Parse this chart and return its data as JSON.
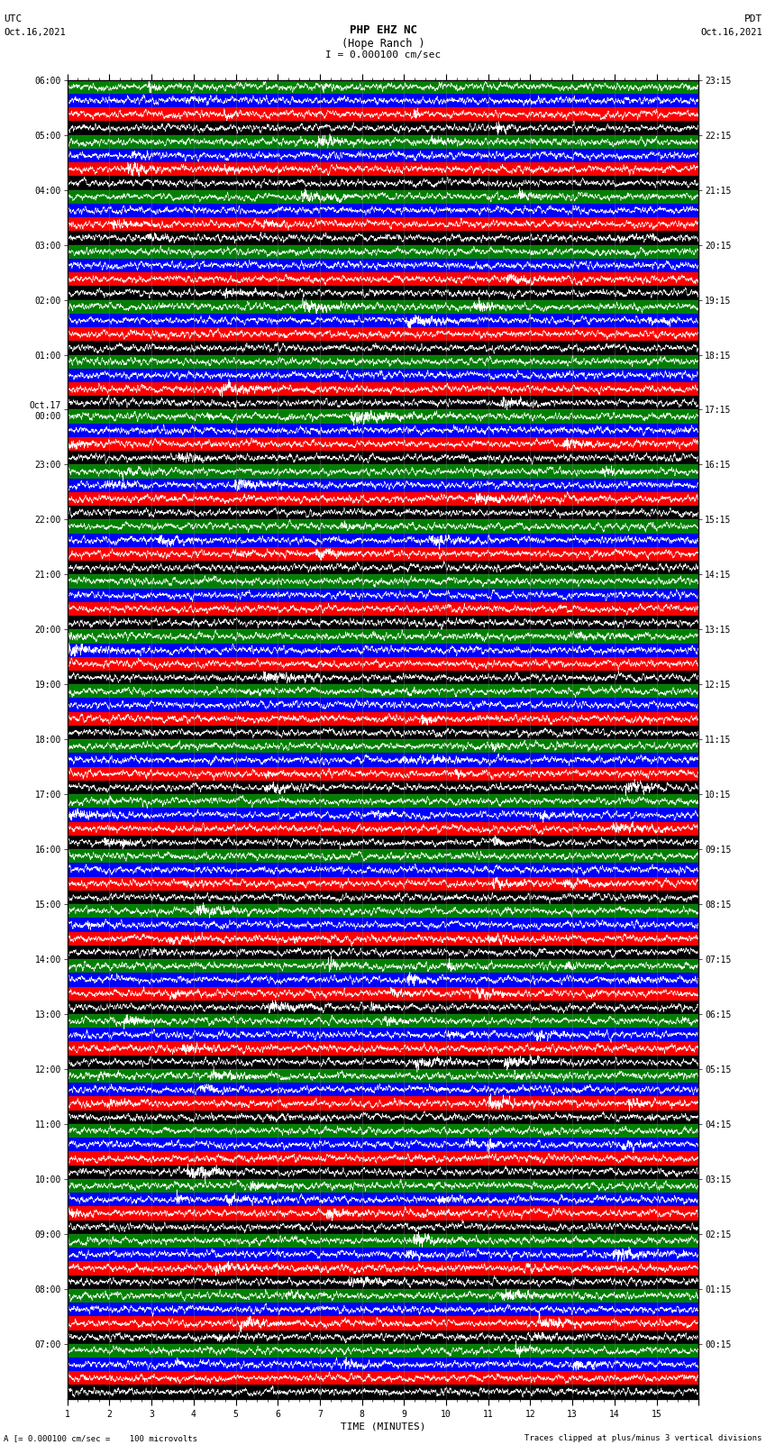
{
  "title_line1": "PHP EHZ NC",
  "title_line2": "(Hope Ranch )",
  "scale_label": "I = 0.000100 cm/sec",
  "utc_label": "UTC",
  "utc_date": "Oct.16,2021",
  "pdt_label": "PDT",
  "pdt_date": "Oct.16,2021",
  "xlabel": "TIME (MINUTES)",
  "bottom_left": "A [= 0.000100 cm/sec =    100 microvolts",
  "bottom_right": "Traces clipped at plus/minus 3 vertical divisions",
  "left_times": [
    "07:00",
    "08:00",
    "09:00",
    "10:00",
    "11:00",
    "12:00",
    "13:00",
    "14:00",
    "15:00",
    "16:00",
    "17:00",
    "18:00",
    "19:00",
    "20:00",
    "21:00",
    "22:00",
    "23:00",
    "Oct.17\n00:00",
    "01:00",
    "02:00",
    "03:00",
    "04:00",
    "05:00",
    "06:00"
  ],
  "right_times": [
    "00:15",
    "01:15",
    "02:15",
    "03:15",
    "04:15",
    "05:15",
    "06:15",
    "07:15",
    "08:15",
    "09:15",
    "10:15",
    "11:15",
    "12:15",
    "13:15",
    "14:15",
    "15:15",
    "16:15",
    "17:15",
    "18:15",
    "19:15",
    "20:15",
    "21:15",
    "22:15",
    "23:15"
  ],
  "num_rows": 24,
  "traces_per_row": 4,
  "minutes_per_row": 15,
  "colors": [
    "black",
    "red",
    "blue",
    "green"
  ],
  "bg_color": "white",
  "xmin": 0,
  "xmax": 15,
  "seed": 42
}
